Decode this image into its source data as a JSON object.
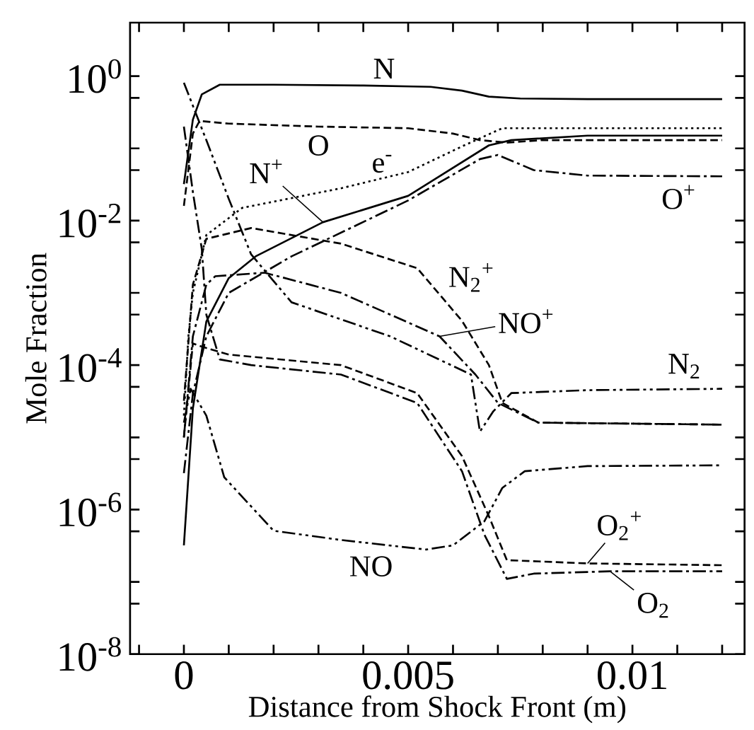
{
  "chart_data": {
    "type": "line",
    "xlabel": "Distance from Shock Front (m)",
    "ylabel": "Mole Fraction",
    "log": "y",
    "xlim": [
      -0.0012,
      0.0125
    ],
    "ylim": [
      1e-08,
      5.5
    ],
    "xticks": [
      {
        "value": -0.001,
        "label": null
      },
      {
        "value": 0,
        "label": "0"
      },
      {
        "value": 0.001,
        "label": null
      },
      {
        "value": 0.002,
        "label": null
      },
      {
        "value": 0.003,
        "label": null
      },
      {
        "value": 0.004,
        "label": null
      },
      {
        "value": 0.005,
        "label": "0.005"
      },
      {
        "value": 0.006,
        "label": null
      },
      {
        "value": 0.007,
        "label": null
      },
      {
        "value": 0.008,
        "label": null
      },
      {
        "value": 0.009,
        "label": null
      },
      {
        "value": 0.01,
        "label": "0.01"
      },
      {
        "value": 0.011,
        "label": null
      },
      {
        "value": 0.012,
        "label": null
      }
    ],
    "yticks": [
      {
        "value": 1e-08,
        "label": "10$^{-8}$"
      },
      {
        "value": 5e-08,
        "label": null
      },
      {
        "value": 1e-07,
        "label": null
      },
      {
        "value": 5e-07,
        "label": null
      },
      {
        "value": 1e-06,
        "label": "10$^{-6}$"
      },
      {
        "value": 5e-06,
        "label": null
      },
      {
        "value": 1e-05,
        "label": null
      },
      {
        "value": 5e-05,
        "label": null
      },
      {
        "value": 0.0001,
        "label": "10$^{-4}$"
      },
      {
        "value": 0.0005,
        "label": null
      },
      {
        "value": 0.001,
        "label": null
      },
      {
        "value": 0.005,
        "label": null
      },
      {
        "value": 0.01,
        "label": "10$^{-2}$"
      },
      {
        "value": 0.05,
        "label": null
      },
      {
        "value": 0.1,
        "label": null
      },
      {
        "value": 0.5,
        "label": null
      },
      {
        "value": 1,
        "label": "10$^{0}$"
      }
    ],
    "grid": false,
    "marker": "none",
    "series": [
      {
        "color": "#000000",
        "line_style": "solid",
        "x": [
          0,
          0.0002,
          0.0004,
          0.0008,
          0.002,
          0.004,
          0.0055,
          0.0062,
          0.0068,
          0.0075,
          0.009,
          0.012
        ],
        "values": [
          0.032,
          0.25,
          0.56,
          0.76,
          0.76,
          0.74,
          0.71,
          0.63,
          0.52,
          0.49,
          0.48,
          0.48
        ]
      },
      {
        "color": "#000000",
        "line_style": "dashed",
        "x": [
          0,
          0.0002,
          0.00035,
          0.001,
          0.003,
          0.005,
          0.006,
          0.0066,
          0.0072,
          0.008,
          0.012
        ],
        "values": [
          0.016,
          0.16,
          0.24,
          0.22,
          0.2,
          0.19,
          0.16,
          0.13,
          0.12,
          0.13,
          0.13
        ]
      },
      {
        "color": "#000000",
        "line_style": "dotted",
        "x": [
          0,
          0.0001,
          0.0002,
          0.0005,
          0.0013,
          0.0035,
          0.005,
          0.00625,
          0.0071,
          0.009,
          0.012
        ],
        "values": [
          2e-05,
          0.00025,
          0.001,
          0.0063,
          0.015,
          0.028,
          0.047,
          0.11,
          0.19,
          0.19,
          0.19
        ]
      },
      {
        "color": "#000000",
        "line_style": "solid",
        "x": [
          0,
          0.0002,
          0.0005,
          0.001,
          0.0016,
          0.0031,
          0.005,
          0.0068,
          0.0073,
          0.009,
          0.012
        ],
        "values": [
          3.2e-07,
          2.5e-05,
          0.0004,
          0.0016,
          0.0032,
          0.0095,
          0.022,
          0.11,
          0.13,
          0.15,
          0.15
        ]
      },
      {
        "color": "#000000",
        "line_style": "dashdot",
        "x": [
          0,
          0.0002,
          0.0005,
          0.001,
          0.0024,
          0.005,
          0.0066,
          0.007,
          0.0078,
          0.009,
          0.012
        ],
        "values": [
          3.2e-06,
          4e-05,
          0.00025,
          0.001,
          0.0032,
          0.019,
          0.071,
          0.081,
          0.05,
          0.042,
          0.041
        ]
      },
      {
        "color": "#000000",
        "line_style": "dashed",
        "x": [
          0,
          0.0002,
          0.0005,
          0.0015,
          0.0035,
          0.0052,
          0.0062,
          0.0068,
          0.0071,
          0.0079,
          0.012
        ],
        "values": [
          3.2e-05,
          0.0013,
          0.0056,
          0.0079,
          0.0048,
          0.0022,
          0.00041,
          0.0001,
          3e-05,
          1.6e-05,
          1.5e-05
        ]
      },
      {
        "color": "#000000",
        "line_style": "dashdot",
        "x": [
          0,
          0.0002,
          0.0005,
          0.0007,
          0.0018,
          0.0035,
          0.0057,
          0.0065,
          0.007,
          0.0079,
          0.012
        ],
        "values": [
          1e-05,
          0.00025,
          0.0013,
          0.0017,
          0.0019,
          0.001,
          0.00025,
          7.4e-05,
          3e-05,
          1.6e-05,
          1.5e-05
        ]
      },
      {
        "color": "#000000",
        "line_style": "dashdotdot",
        "x": [
          0,
          0.0005,
          0.001,
          0.0015,
          0.0024,
          0.0046,
          0.0064,
          0.0066,
          0.0069,
          0.0073,
          0.009,
          0.012
        ],
        "values": [
          0.81,
          0.13,
          0.02,
          0.0034,
          0.00074,
          0.00025,
          7.4e-05,
          1.2e-05,
          2.3e-05,
          4.1e-05,
          4.5e-05,
          4.7e-05
        ]
      },
      {
        "color": "#000000",
        "line_style": "dashed",
        "x": [
          0,
          0.0002,
          0.0004,
          0.001,
          0.0035,
          0.0052,
          0.0062,
          0.0068,
          0.0072,
          0.009,
          0.012
        ],
        "values": [
          1e-05,
          0.0002,
          0.00018,
          0.00014,
          0.0001,
          4.1e-05,
          5.5e-06,
          8.1e-07,
          2e-07,
          1.8e-07,
          1.7e-07
        ]
      },
      {
        "color": "#000000",
        "line_style": "dashdot",
        "x": [
          0,
          0.0002,
          0.0004,
          0.0005,
          0.0008,
          0.0015,
          0.0035,
          0.0052,
          0.0062,
          0.0067,
          0.0072,
          0.0078,
          0.0095,
          0.012
        ],
        "values": [
          0.2,
          0.025,
          0.004,
          0.0005,
          0.00012,
          0.0001,
          7.4e-05,
          3e-05,
          3.4e-06,
          4.5e-07,
          1.1e-07,
          1.3e-07,
          1.4e-07,
          1.4e-07
        ]
      },
      {
        "color": "#000000",
        "line_style": "dashdotdot",
        "x": [
          0,
          0.00015,
          0.0005,
          0.0009,
          0.002,
          0.0035,
          0.0054,
          0.006,
          0.0067,
          0.0071,
          0.0076,
          0.009,
          0.012
        ],
        "values": [
          1.6e-05,
          4.7e-05,
          2e-05,
          2.8e-06,
          5.1e-07,
          3.8e-07,
          2.8e-07,
          3.2e-07,
          6.9e-07,
          2e-06,
          3.4e-06,
          4e-06,
          4.1e-06
        ]
      }
    ],
    "annotations": [
      {
        "text": "N",
        "x": 0.004,
        "y": 0.74
      },
      {
        "text": "O",
        "x": 0.003,
        "y": 0.2
      },
      {
        "text": "e$^{-}$",
        "x": 0.0035,
        "y": 0.028
      },
      {
        "text": "N$^{+}$",
        "x": 0.0031,
        "y": 0.0095
      },
      {
        "text": "O$^{+}$",
        "x": 0.012,
        "y": 0.041
      },
      {
        "text": "N$_{2}$$^{+}$",
        "x": 0.0062,
        "y": 0.00041
      },
      {
        "text": "NO$^{+}$",
        "x": 0.0057,
        "y": 0.00025
      },
      {
        "text": "N$_{2}$",
        "x": 0.012,
        "y": 4.7e-05
      },
      {
        "text": "O$_{2}$$^{+}$",
        "x": 0.009,
        "y": 1.8e-07
      },
      {
        "text": "O$_{2}$",
        "x": 0.0095,
        "y": 1.4e-07
      },
      {
        "text": "NO",
        "x": 0.0035,
        "y": 3.8e-07
      }
    ]
  }
}
